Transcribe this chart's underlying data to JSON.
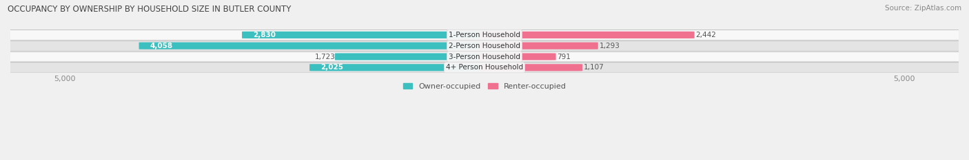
{
  "title": "OCCUPANCY BY OWNERSHIP BY HOUSEHOLD SIZE IN BUTLER COUNTY",
  "source": "Source: ZipAtlas.com",
  "categories": [
    "1-Person Household",
    "2-Person Household",
    "3-Person Household",
    "4+ Person Household"
  ],
  "owner_values": [
    2830,
    4058,
    1723,
    2025
  ],
  "renter_values": [
    2442,
    1293,
    791,
    1107
  ],
  "max_scale": 5000,
  "owner_color": "#3BBFBF",
  "renter_color": "#F07090",
  "background_color": "#f0f0f0",
  "row_bg_even": "#f8f8f8",
  "row_bg_odd": "#e4e4e4",
  "title_color": "#444444",
  "source_color": "#888888",
  "label_inside_color": "#ffffff",
  "label_outside_color": "#555555",
  "legend_owner_label": "Owner-occupied",
  "legend_renter_label": "Renter-occupied",
  "axis_tick_color": "#888888"
}
